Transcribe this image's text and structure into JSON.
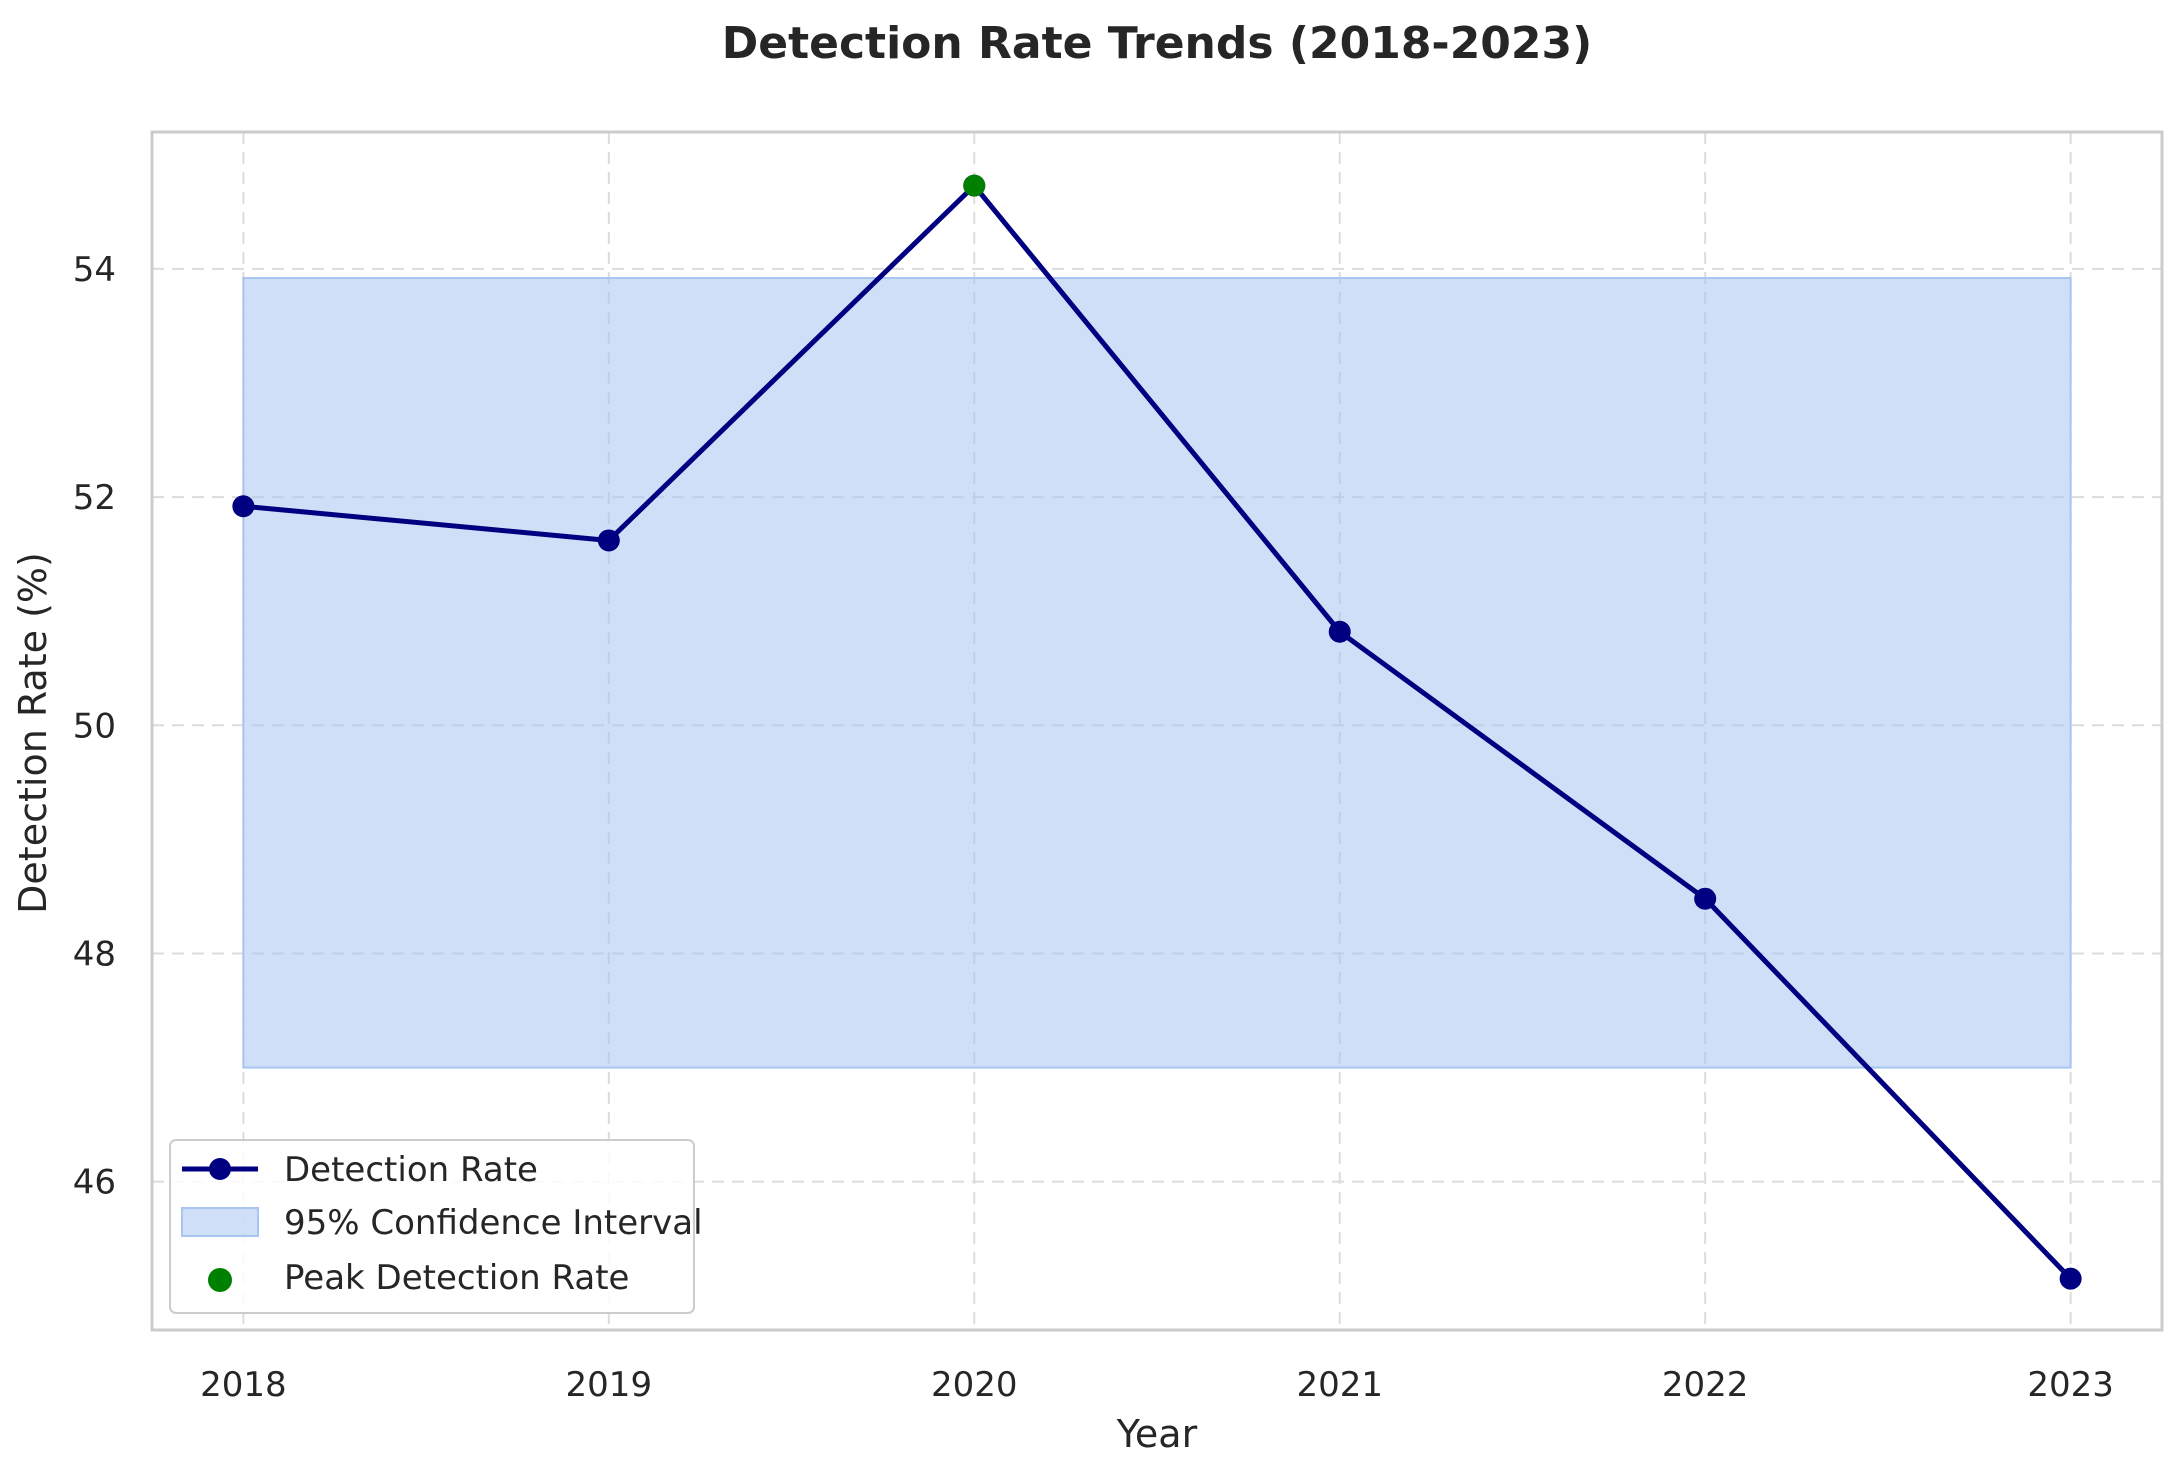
{
  "chart_data": {
    "type": "line",
    "title": "Detection Rate Trends (2018-2023)",
    "xlabel": "Year",
    "ylabel": "Detection Rate (%)",
    "x": [
      2018,
      2019,
      2020,
      2021,
      2022,
      2023
    ],
    "x_tick_labels": [
      "2018",
      "2019",
      "2020",
      "2021",
      "2022",
      "2023"
    ],
    "y_ticks": [
      46,
      48,
      50,
      52,
      54
    ],
    "y_tick_labels": [
      "46",
      "48",
      "50",
      "52",
      "54"
    ],
    "xlim": [
      2017.75,
      2023.25
    ],
    "ylim": [
      44.7,
      55.2
    ],
    "series": [
      {
        "name": "Detection Rate",
        "values": [
          51.92,
          51.62,
          54.73,
          50.82,
          48.48,
          45.15
        ],
        "color": "#000080"
      }
    ],
    "confidence_interval": {
      "name": "95% Confidence Interval",
      "x_range": [
        2018,
        2023
      ],
      "lower": 47.0,
      "upper": 53.92,
      "color": "#a8c4f0"
    },
    "peak": {
      "name": "Peak Detection Rate",
      "x": 2020,
      "y": 54.73,
      "color": "#008000"
    },
    "grid": true,
    "legend_position": "lower-left"
  }
}
